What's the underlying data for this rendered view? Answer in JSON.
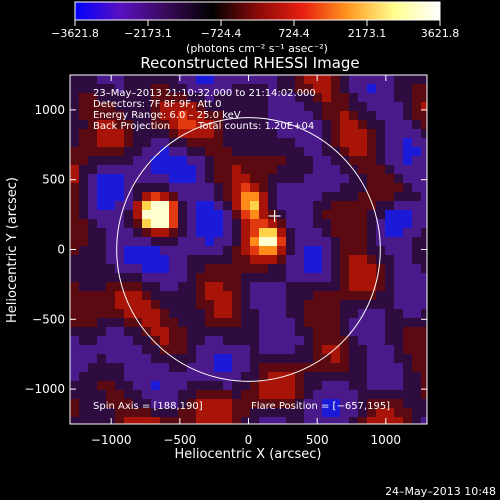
{
  "colorbar": {
    "ticks": [
      "−3621.8",
      "−2173.1",
      "−724.4",
      "724.4",
      "2173.1",
      "3621.8"
    ],
    "units": "(photons cm⁻² s⁻¹ asec⁻²)",
    "colors": [
      "#0000ff",
      "#5a10c0",
      "#3a0a5a",
      "#000000",
      "#8a0a0a",
      "#e82010",
      "#ff9a20",
      "#ffff90",
      "#ffffff"
    ]
  },
  "chart_data": {
    "type": "heatmap",
    "title": "Reconstructed RHESSI Image",
    "xlabel": "Heliocentric X (arcsec)",
    "ylabel": "Heliocentric Y (arcsec)",
    "xlim": [
      -1300,
      1300
    ],
    "ylim": [
      -1250,
      1250
    ],
    "xticks": [
      -1000,
      -500,
      0,
      500,
      1000
    ],
    "yticks": [
      -1000,
      -500,
      0,
      500,
      1000
    ],
    "xtick_labels": [
      "−1000",
      "−500",
      "0",
      "500",
      "1000"
    ],
    "ytick_labels": [
      "−1000",
      "−500",
      "0",
      "500",
      "1000"
    ],
    "value_range": [
      -3621.8,
      3621.8
    ],
    "solar_limb": {
      "center": [
        0,
        0
      ],
      "radius": 960
    },
    "cross_marker": [
      190,
      240
    ],
    "bright_sources": [
      {
        "x": -670,
        "y": 245,
        "level": "max"
      },
      {
        "x": 160,
        "y": 80,
        "level": "high"
      },
      {
        "x": 20,
        "y": 330,
        "level": "high"
      }
    ],
    "negative_sources": [
      {
        "x": 1090,
        "y": 230,
        "level": "min"
      }
    ],
    "annotations": {
      "time": "23–May–2013 21:10:32.000 to 21:14:02.000",
      "detectors": "Detectors: 7F 8F 9F, Att 0",
      "energy": "Energy Range: 6.0 – 25.0 keV",
      "method": "Back Projection",
      "counts": "Total counts: 1.20E+04",
      "spin_axis": "Spin Axis = [188,190]",
      "flare_position": "Flare Position = [−657,195]"
    }
  },
  "footer": {
    "date": "24–May–2013 10:48"
  }
}
